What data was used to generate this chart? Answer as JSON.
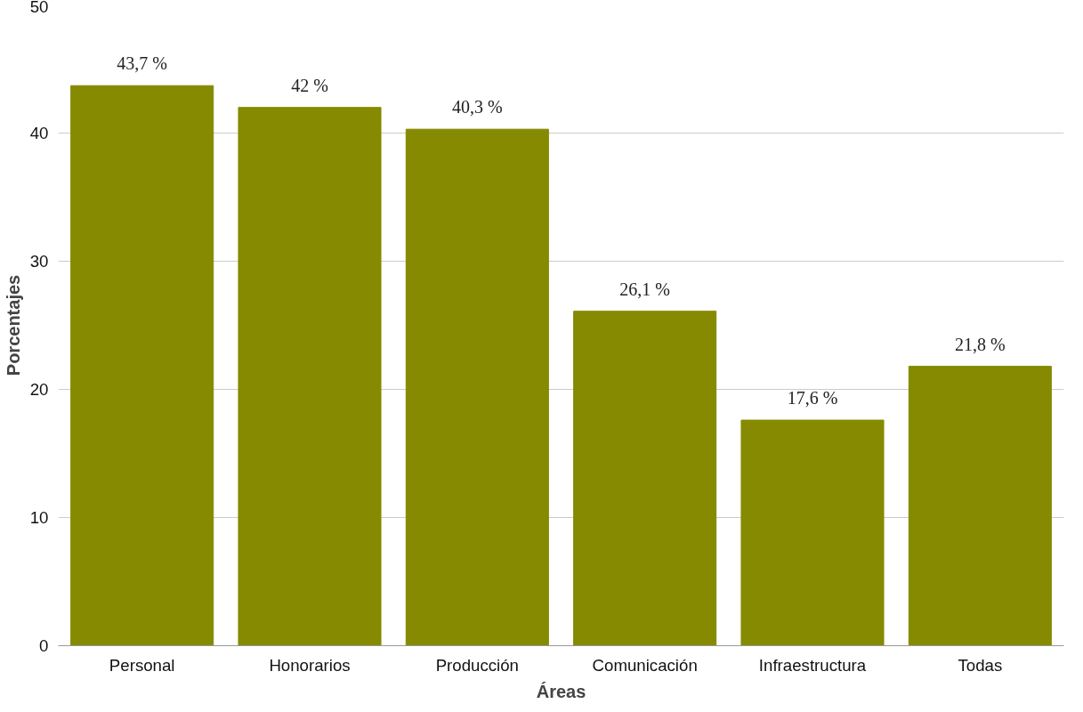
{
  "chart_data": {
    "type": "bar",
    "xlabel": "Áreas",
    "ylabel": "Porcentajes",
    "categories": [
      "Personal",
      "Honorarios",
      "Producción",
      "Comunicación",
      "Infraestructura",
      "Todas"
    ],
    "values": [
      43.7,
      42,
      40.3,
      26.1,
      17.6,
      21.8
    ],
    "value_labels": [
      "43,7 %",
      "42 %",
      "40,3 %",
      "26,1 %",
      "17,6 %",
      "21,8 %"
    ],
    "color": "#858a00",
    "ylim": [
      0,
      50
    ],
    "yticks": [
      0,
      10,
      20,
      30,
      40,
      50
    ],
    "grid": "y"
  }
}
